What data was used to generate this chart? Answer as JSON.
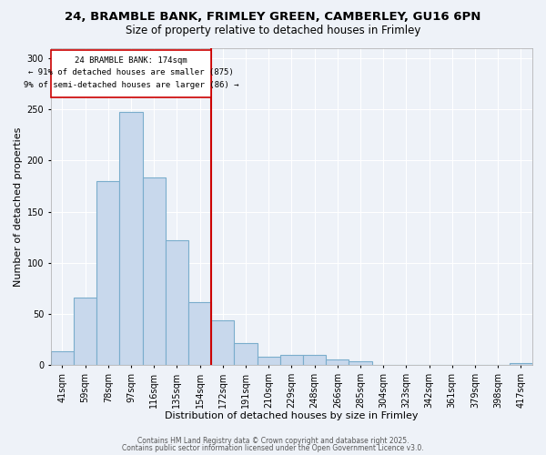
{
  "title1": "24, BRAMBLE BANK, FRIMLEY GREEN, CAMBERLEY, GU16 6PN",
  "title2": "Size of property relative to detached houses in Frimley",
  "xlabel": "Distribution of detached houses by size in Frimley",
  "ylabel": "Number of detached properties",
  "categories": [
    "41sqm",
    "59sqm",
    "78sqm",
    "97sqm",
    "116sqm",
    "135sqm",
    "154sqm",
    "172sqm",
    "191sqm",
    "210sqm",
    "229sqm",
    "248sqm",
    "266sqm",
    "285sqm",
    "304sqm",
    "323sqm",
    "342sqm",
    "361sqm",
    "379sqm",
    "398sqm",
    "417sqm"
  ],
  "values": [
    14,
    66,
    180,
    247,
    183,
    122,
    62,
    44,
    22,
    8,
    10,
    10,
    6,
    4,
    0,
    0,
    0,
    0,
    0,
    0,
    2
  ],
  "bar_color": "#c8d8ec",
  "bar_edge_color": "#7aadcc",
  "bar_linewidth": 0.8,
  "vline_pos": 6.5,
  "vline_color": "#cc0000",
  "annotation_line1": "24 BRAMBLE BANK: 174sqm",
  "annotation_line2": "← 91% of detached houses are smaller (875)",
  "annotation_line3": "9% of semi-detached houses are larger (86) →",
  "box_color": "#cc0000",
  "ylim": [
    0,
    310
  ],
  "yticks": [
    0,
    50,
    100,
    150,
    200,
    250,
    300
  ],
  "background_color": "#eef2f8",
  "grid_color": "#ffffff",
  "footer1": "Contains HM Land Registry data © Crown copyright and database right 2025.",
  "footer2": "Contains public sector information licensed under the Open Government Licence v3.0.",
  "title_fontsize": 9.5,
  "subtitle_fontsize": 8.5,
  "axis_label_fontsize": 8,
  "tick_fontsize": 7,
  "footer_fontsize": 5.5
}
